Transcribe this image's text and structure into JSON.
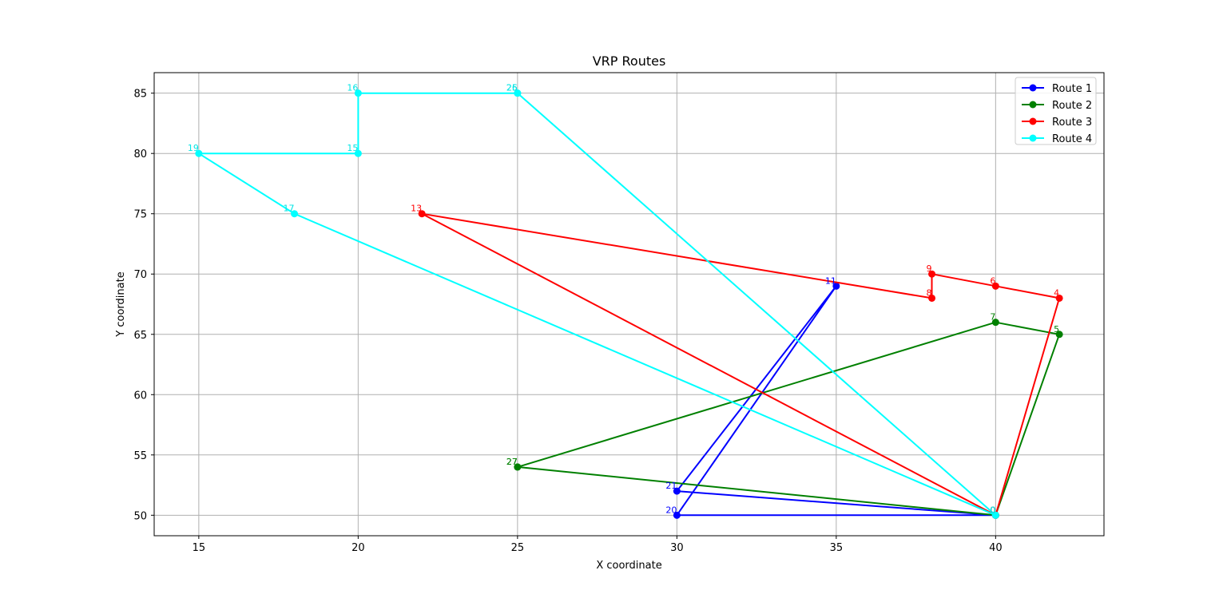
{
  "chart_data": {
    "type": "line",
    "title": "VRP Routes",
    "xlabel": "X coordinate",
    "ylabel": "Y coordinate",
    "xlim": [
      13.6,
      43.4
    ],
    "ylim": [
      48.3,
      86.7
    ],
    "xticks": [
      15,
      20,
      25,
      30,
      35,
      40
    ],
    "yticks": [
      50,
      55,
      60,
      65,
      70,
      75,
      80,
      85
    ],
    "grid": true,
    "legend_position": "top-right",
    "series": [
      {
        "name": "Route 1",
        "color": "#0000ff",
        "points": [
          {
            "x": 40,
            "y": 50,
            "label": "0"
          },
          {
            "x": 30,
            "y": 52,
            "label": "21"
          },
          {
            "x": 35,
            "y": 69,
            "label": "11"
          },
          {
            "x": 30,
            "y": 50,
            "label": "20"
          },
          {
            "x": 40,
            "y": 50,
            "label": "0"
          }
        ]
      },
      {
        "name": "Route 2",
        "color": "#008000",
        "points": [
          {
            "x": 40,
            "y": 50,
            "label": "0"
          },
          {
            "x": 42,
            "y": 65,
            "label": "5"
          },
          {
            "x": 40,
            "y": 66,
            "label": "7"
          },
          {
            "x": 25,
            "y": 54,
            "label": "27"
          },
          {
            "x": 25,
            "y": 54,
            "label": "27"
          },
          {
            "x": 40,
            "y": 50,
            "label": "0"
          }
        ]
      },
      {
        "name": "Route 3",
        "color": "#ff0000",
        "points": [
          {
            "x": 40,
            "y": 50,
            "label": "0"
          },
          {
            "x": 42,
            "y": 68,
            "label": "4"
          },
          {
            "x": 40,
            "y": 69,
            "label": "6"
          },
          {
            "x": 38,
            "y": 70,
            "label": "9"
          },
          {
            "x": 38,
            "y": 68,
            "label": "8"
          },
          {
            "x": 22,
            "y": 75,
            "label": "13"
          },
          {
            "x": 40,
            "y": 50,
            "label": "0"
          }
        ]
      },
      {
        "name": "Route 4",
        "color": "#00ffff",
        "points": [
          {
            "x": 40,
            "y": 50,
            "label": "0"
          },
          {
            "x": 25,
            "y": 85,
            "label": "25"
          },
          {
            "x": 25,
            "y": 85,
            "label": "26"
          },
          {
            "x": 20,
            "y": 85,
            "label": "16"
          },
          {
            "x": 20,
            "y": 80,
            "label": "15"
          },
          {
            "x": 15,
            "y": 80,
            "label": "19"
          },
          {
            "x": 18,
            "y": 75,
            "label": "17"
          },
          {
            "x": 40,
            "y": 50,
            "label": "0"
          }
        ]
      }
    ]
  }
}
